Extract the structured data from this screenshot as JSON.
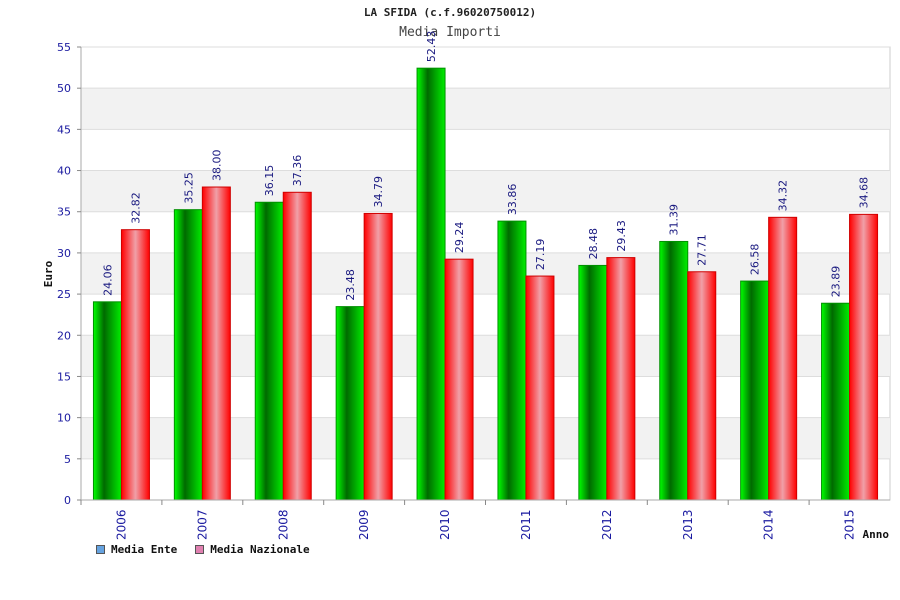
{
  "chart_data": {
    "type": "bar",
    "title": "LA SFIDA (c.f.96020750012)",
    "subtitle": "Media Importi",
    "xlabel": "Anno",
    "ylabel": "Euro",
    "ylim": [
      0,
      55
    ],
    "yticks": [
      0,
      5,
      10,
      15,
      20,
      25,
      30,
      35,
      40,
      45,
      50,
      55
    ],
    "grid": true,
    "legend_position": "bottom-left",
    "categories": [
      "2006",
      "2007",
      "2008",
      "2009",
      "2010",
      "2011",
      "2012",
      "2013",
      "2014",
      "2015"
    ],
    "series": [
      {
        "name": "Media Ente",
        "color": "#00b000",
        "legend_color": "#66a3e0",
        "values": [
          24.06,
          35.25,
          36.15,
          23.48,
          52.43,
          33.86,
          28.48,
          31.39,
          26.58,
          23.89
        ],
        "labels": [
          "24.06",
          "35.25",
          "36.15",
          "23.48",
          "52.43",
          "33.86",
          "28.48",
          "31.39",
          "26.58",
          "23.89"
        ]
      },
      {
        "name": "Media Nazionale",
        "color": "#ff0000",
        "legend_color": "#e080b0",
        "values": [
          32.82,
          38.0,
          37.36,
          34.79,
          29.24,
          27.19,
          29.43,
          27.71,
          34.32,
          34.68
        ],
        "labels": [
          "32.82",
          "38.00",
          "37.36",
          "34.79",
          "29.24",
          "27.19",
          "29.43",
          "27.71",
          "34.32",
          "34.68"
        ]
      }
    ]
  }
}
